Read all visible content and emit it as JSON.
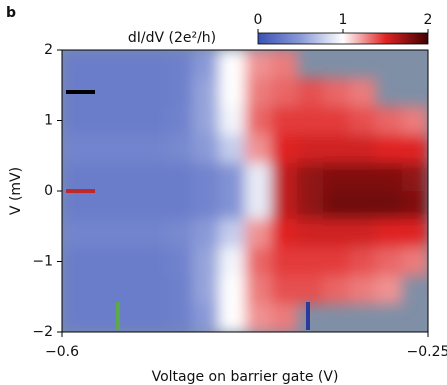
{
  "panel_label": "b",
  "chart_data": {
    "type": "heatmap",
    "colorbar_label": "dI/dV (2e²/h)",
    "x_label": "Voltage on barrier gate (V)",
    "y_label": "V (mV)",
    "x": [
      -0.5875,
      -0.5625,
      -0.5375,
      -0.5125,
      -0.4875,
      -0.4625,
      -0.4375,
      -0.4125,
      -0.3875,
      -0.3625,
      -0.3375,
      -0.3125,
      -0.2875,
      -0.2625
    ],
    "y": [
      1.8,
      1.4,
      1.0,
      0.6,
      0.2,
      -0.2,
      -0.6,
      -1.0,
      -1.4,
      -1.8
    ],
    "z": [
      [
        0.3,
        0.3,
        0.3,
        0.3,
        0.32,
        0.5,
        1.0,
        1.25,
        1.3,
        null,
        null,
        null,
        null,
        null
      ],
      [
        0.3,
        0.3,
        0.3,
        0.3,
        0.32,
        0.55,
        1.0,
        1.3,
        1.35,
        1.4,
        1.35,
        1.3,
        null,
        null
      ],
      [
        0.3,
        0.3,
        0.3,
        0.3,
        0.33,
        0.55,
        0.95,
        1.35,
        1.45,
        1.45,
        1.45,
        1.4,
        1.35,
        1.3
      ],
      [
        0.35,
        0.35,
        0.35,
        0.35,
        0.38,
        0.5,
        0.75,
        1.25,
        1.5,
        1.55,
        1.55,
        1.55,
        1.5,
        1.5
      ],
      [
        0.3,
        0.3,
        0.3,
        0.3,
        0.3,
        0.35,
        0.45,
        0.9,
        1.6,
        1.75,
        1.8,
        1.8,
        1.8,
        1.75
      ],
      [
        0.3,
        0.3,
        0.3,
        0.3,
        0.3,
        0.35,
        0.45,
        0.9,
        1.6,
        1.75,
        1.85,
        1.85,
        1.85,
        1.8
      ],
      [
        0.35,
        0.35,
        0.35,
        0.35,
        0.38,
        0.5,
        0.75,
        1.25,
        1.5,
        1.55,
        1.55,
        1.55,
        1.5,
        1.5
      ],
      [
        0.3,
        0.3,
        0.3,
        0.3,
        0.33,
        0.55,
        0.95,
        1.35,
        1.45,
        1.45,
        1.45,
        1.4,
        1.35,
        1.3
      ],
      [
        0.3,
        0.3,
        0.3,
        0.3,
        0.32,
        0.55,
        1.0,
        1.3,
        1.4,
        1.4,
        1.35,
        1.3,
        1.25,
        null
      ],
      [
        0.3,
        0.3,
        0.3,
        0.3,
        0.32,
        0.5,
        1.0,
        1.25,
        1.3,
        null,
        null,
        null,
        null,
        null
      ]
    ],
    "xlim": [
      -0.6,
      -0.25
    ],
    "xticks": [
      {
        "value": -0.6,
        "label": "−0.6"
      },
      {
        "value": -0.25,
        "label": "−0.25"
      }
    ],
    "ylim": [
      -2,
      2
    ],
    "yticks": [
      2,
      1,
      0,
      {
        "value": -1,
        "label": "−1"
      },
      {
        "value": -2,
        "label": "−2"
      }
    ],
    "zlim": [
      0,
      2
    ],
    "zticks": [
      0,
      1,
      2
    ],
    "colors": [
      "#3a52b4",
      "#8a9ad8",
      "#ffffff",
      "#e02424",
      "#400000"
    ],
    "missing_color": "#7f8fa6"
  }
}
